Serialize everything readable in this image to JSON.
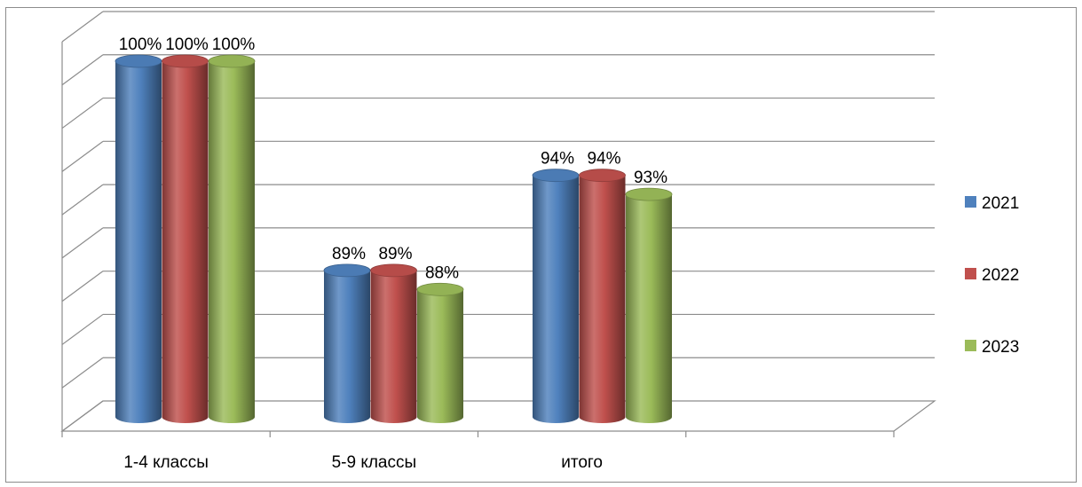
{
  "chart_data": {
    "type": "bar",
    "title": "",
    "xlabel": "",
    "ylabel": "",
    "categories": [
      "1-4 классы",
      "5-9 классы",
      "итого"
    ],
    "series": [
      {
        "name": "2021",
        "values": [
          100,
          89,
          94
        ],
        "labels": [
          "100%",
          "89%",
          "94%"
        ],
        "color": "#4F81BD"
      },
      {
        "name": "2022",
        "values": [
          100,
          89,
          94
        ],
        "labels": [
          "100%",
          "89%",
          "94%"
        ],
        "color": "#C0504D"
      },
      {
        "name": "2023",
        "values": [
          100,
          88,
          93
        ],
        "labels": [
          "100%",
          "88%",
          "93%"
        ],
        "color": "#9BBB59"
      }
    ],
    "ylim": [
      82,
      100
    ],
    "grid": true,
    "y_tick_labels_visible": false,
    "legend_position": "right",
    "bar_shape": "3d-cylinder"
  }
}
